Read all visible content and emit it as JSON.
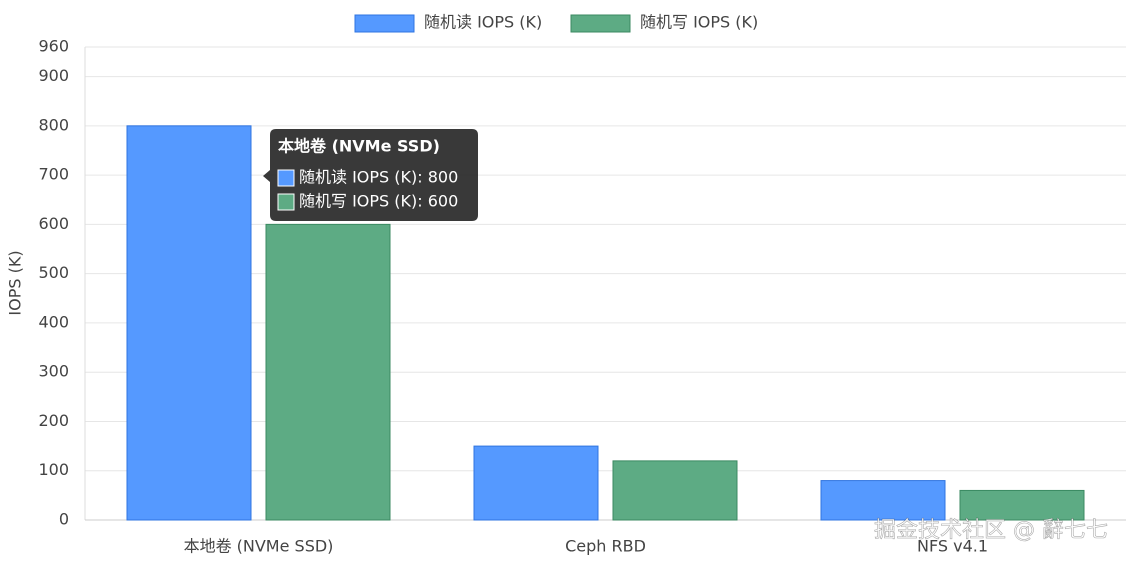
{
  "chart_data": {
    "type": "bar",
    "y_label": "IOPS (K)",
    "categories": [
      "本地卷 (NVMe SSD)",
      "Ceph RBD",
      "NFS v4.1"
    ],
    "series": [
      {
        "name": "随机读 IOPS (K)",
        "color": "#5599ff",
        "border": "#2f74e0",
        "values": [
          800,
          150,
          80
        ]
      },
      {
        "name": "随机写 IOPS (K)",
        "color": "#5dab84",
        "border": "#3b8a62",
        "values": [
          600,
          120,
          60
        ]
      }
    ],
    "ylim": [
      0,
      960
    ],
    "yticks": [
      0,
      100,
      200,
      300,
      400,
      500,
      600,
      700,
      800,
      900,
      960
    ],
    "grid": true,
    "legend": "top",
    "tooltip": {
      "title": "本地卷 (NVMe SSD)",
      "lines": [
        "随机读 IOPS (K): 800",
        "随机写 IOPS (K): 600"
      ]
    },
    "watermark": "掘金技术社区 @ 辭七七"
  }
}
